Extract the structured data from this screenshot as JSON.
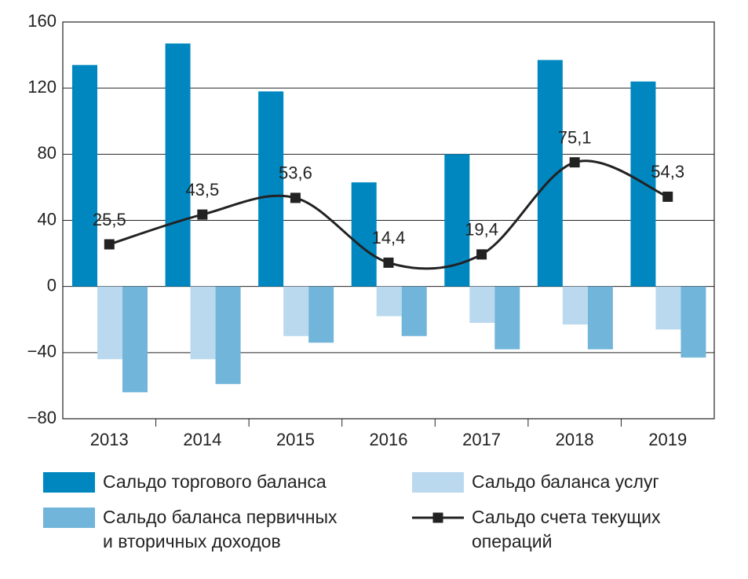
{
  "chart_data": {
    "type": "bar-line",
    "categories": [
      "2013",
      "2014",
      "2015",
      "2016",
      "2017",
      "2018",
      "2019"
    ],
    "series": [
      {
        "name": "Сальдо торгового баланса",
        "type": "bar",
        "color": "#0087c0",
        "values": [
          134,
          147,
          118,
          63,
          80,
          137,
          124
        ]
      },
      {
        "name": "Сальдо баланса услуг",
        "type": "bar",
        "color": "#bad9ee",
        "values": [
          -44,
          -44,
          -30,
          -18,
          -22,
          -23,
          -26
        ]
      },
      {
        "name": "Сальдо баланса первичных\nи вторичных доходов",
        "type": "bar",
        "color": "#72b5da",
        "values": [
          -64,
          -59,
          -34,
          -30,
          -38,
          -38,
          -43
        ]
      },
      {
        "name": "Сальдо счета текущих\nопераций",
        "type": "line",
        "color": "#222222",
        "values": [
          25.5,
          43.5,
          53.6,
          14.4,
          19.4,
          75.1,
          54.3
        ],
        "value_labels": [
          "25,5",
          "43,5",
          "53,6",
          "14,4",
          "19,4",
          "75,1",
          "54,3"
        ]
      }
    ],
    "ylim": [
      -80,
      160
    ],
    "yticks": [
      {
        "value": -80,
        "label": "−80"
      },
      {
        "value": -40,
        "label": "−40"
      },
      0,
      40,
      80,
      120,
      160
    ],
    "grid": true
  }
}
